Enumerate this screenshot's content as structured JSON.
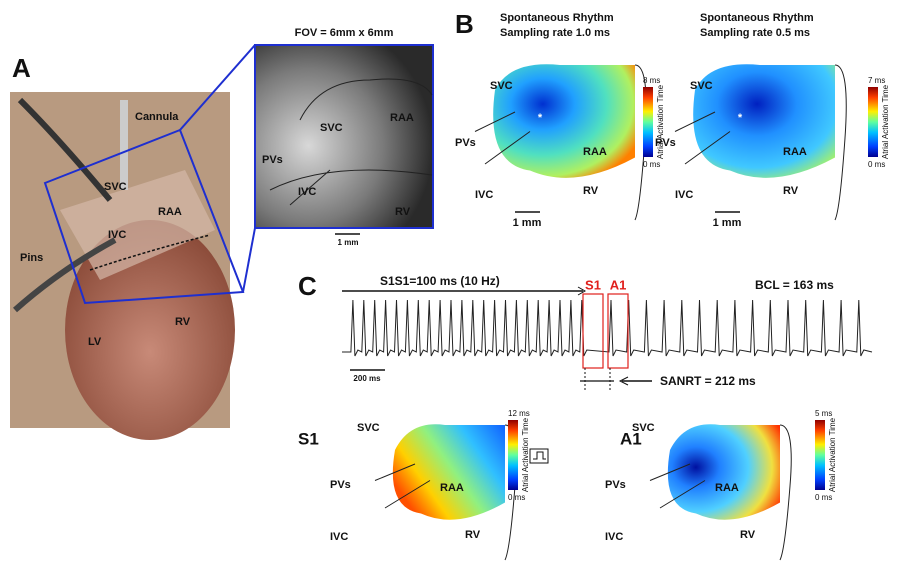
{
  "panel_a": {
    "letter": "A",
    "photo_labels": [
      "Cannula",
      "SVC",
      "RAA",
      "IVC",
      "Pins",
      "LV",
      "RV"
    ],
    "inset_title": "FOV = 6mm x 6mm",
    "inset_labels": [
      "SVC",
      "PVs",
      "RAA",
      "IVC",
      "RV"
    ],
    "scale": "1 mm"
  },
  "panel_b": {
    "letter": "B",
    "maps": [
      {
        "title": "Spontaneous Rhythm",
        "subtitle": "Sampling rate 1.0 ms",
        "labels": [
          "SVC",
          "PVs",
          "RAA",
          "IVC",
          "RV"
        ],
        "scale": "1 mm",
        "cbar_max": "8 ms",
        "cbar_min": "0 ms",
        "cbar_title": "Atrial Activation Time"
      },
      {
        "title": "Spontaneous Rhythm",
        "subtitle": "Sampling rate 0.5 ms",
        "labels": [
          "SVC",
          "PVs",
          "RAA",
          "IVC",
          "RV"
        ],
        "scale": "1 mm",
        "cbar_max": "7 ms",
        "cbar_min": "0 ms",
        "cbar_title": "Atrial Activation Time"
      }
    ]
  },
  "panel_c": {
    "letter": "C",
    "pacing": "S1S1=100 ms (10 Hz)",
    "s1": "S1",
    "a1": "A1",
    "bcl": "BCL = 163 ms",
    "time_scale": "200 ms",
    "sanrt": "SANRT = 212 ms",
    "maps": [
      {
        "label": "S1",
        "labels": [
          "SVC",
          "PVs",
          "RAA",
          "IVC",
          "RV"
        ],
        "cbar_max": "12 ms",
        "cbar_min": "0 ms",
        "cbar_title": "Atrial Activation Time"
      },
      {
        "label": "A1",
        "labels": [
          "SVC",
          "PVs",
          "RAA",
          "IVC",
          "RV"
        ],
        "cbar_max": "5 ms",
        "cbar_min": "0 ms",
        "cbar_title": "Atrial Activation Time"
      }
    ]
  }
}
